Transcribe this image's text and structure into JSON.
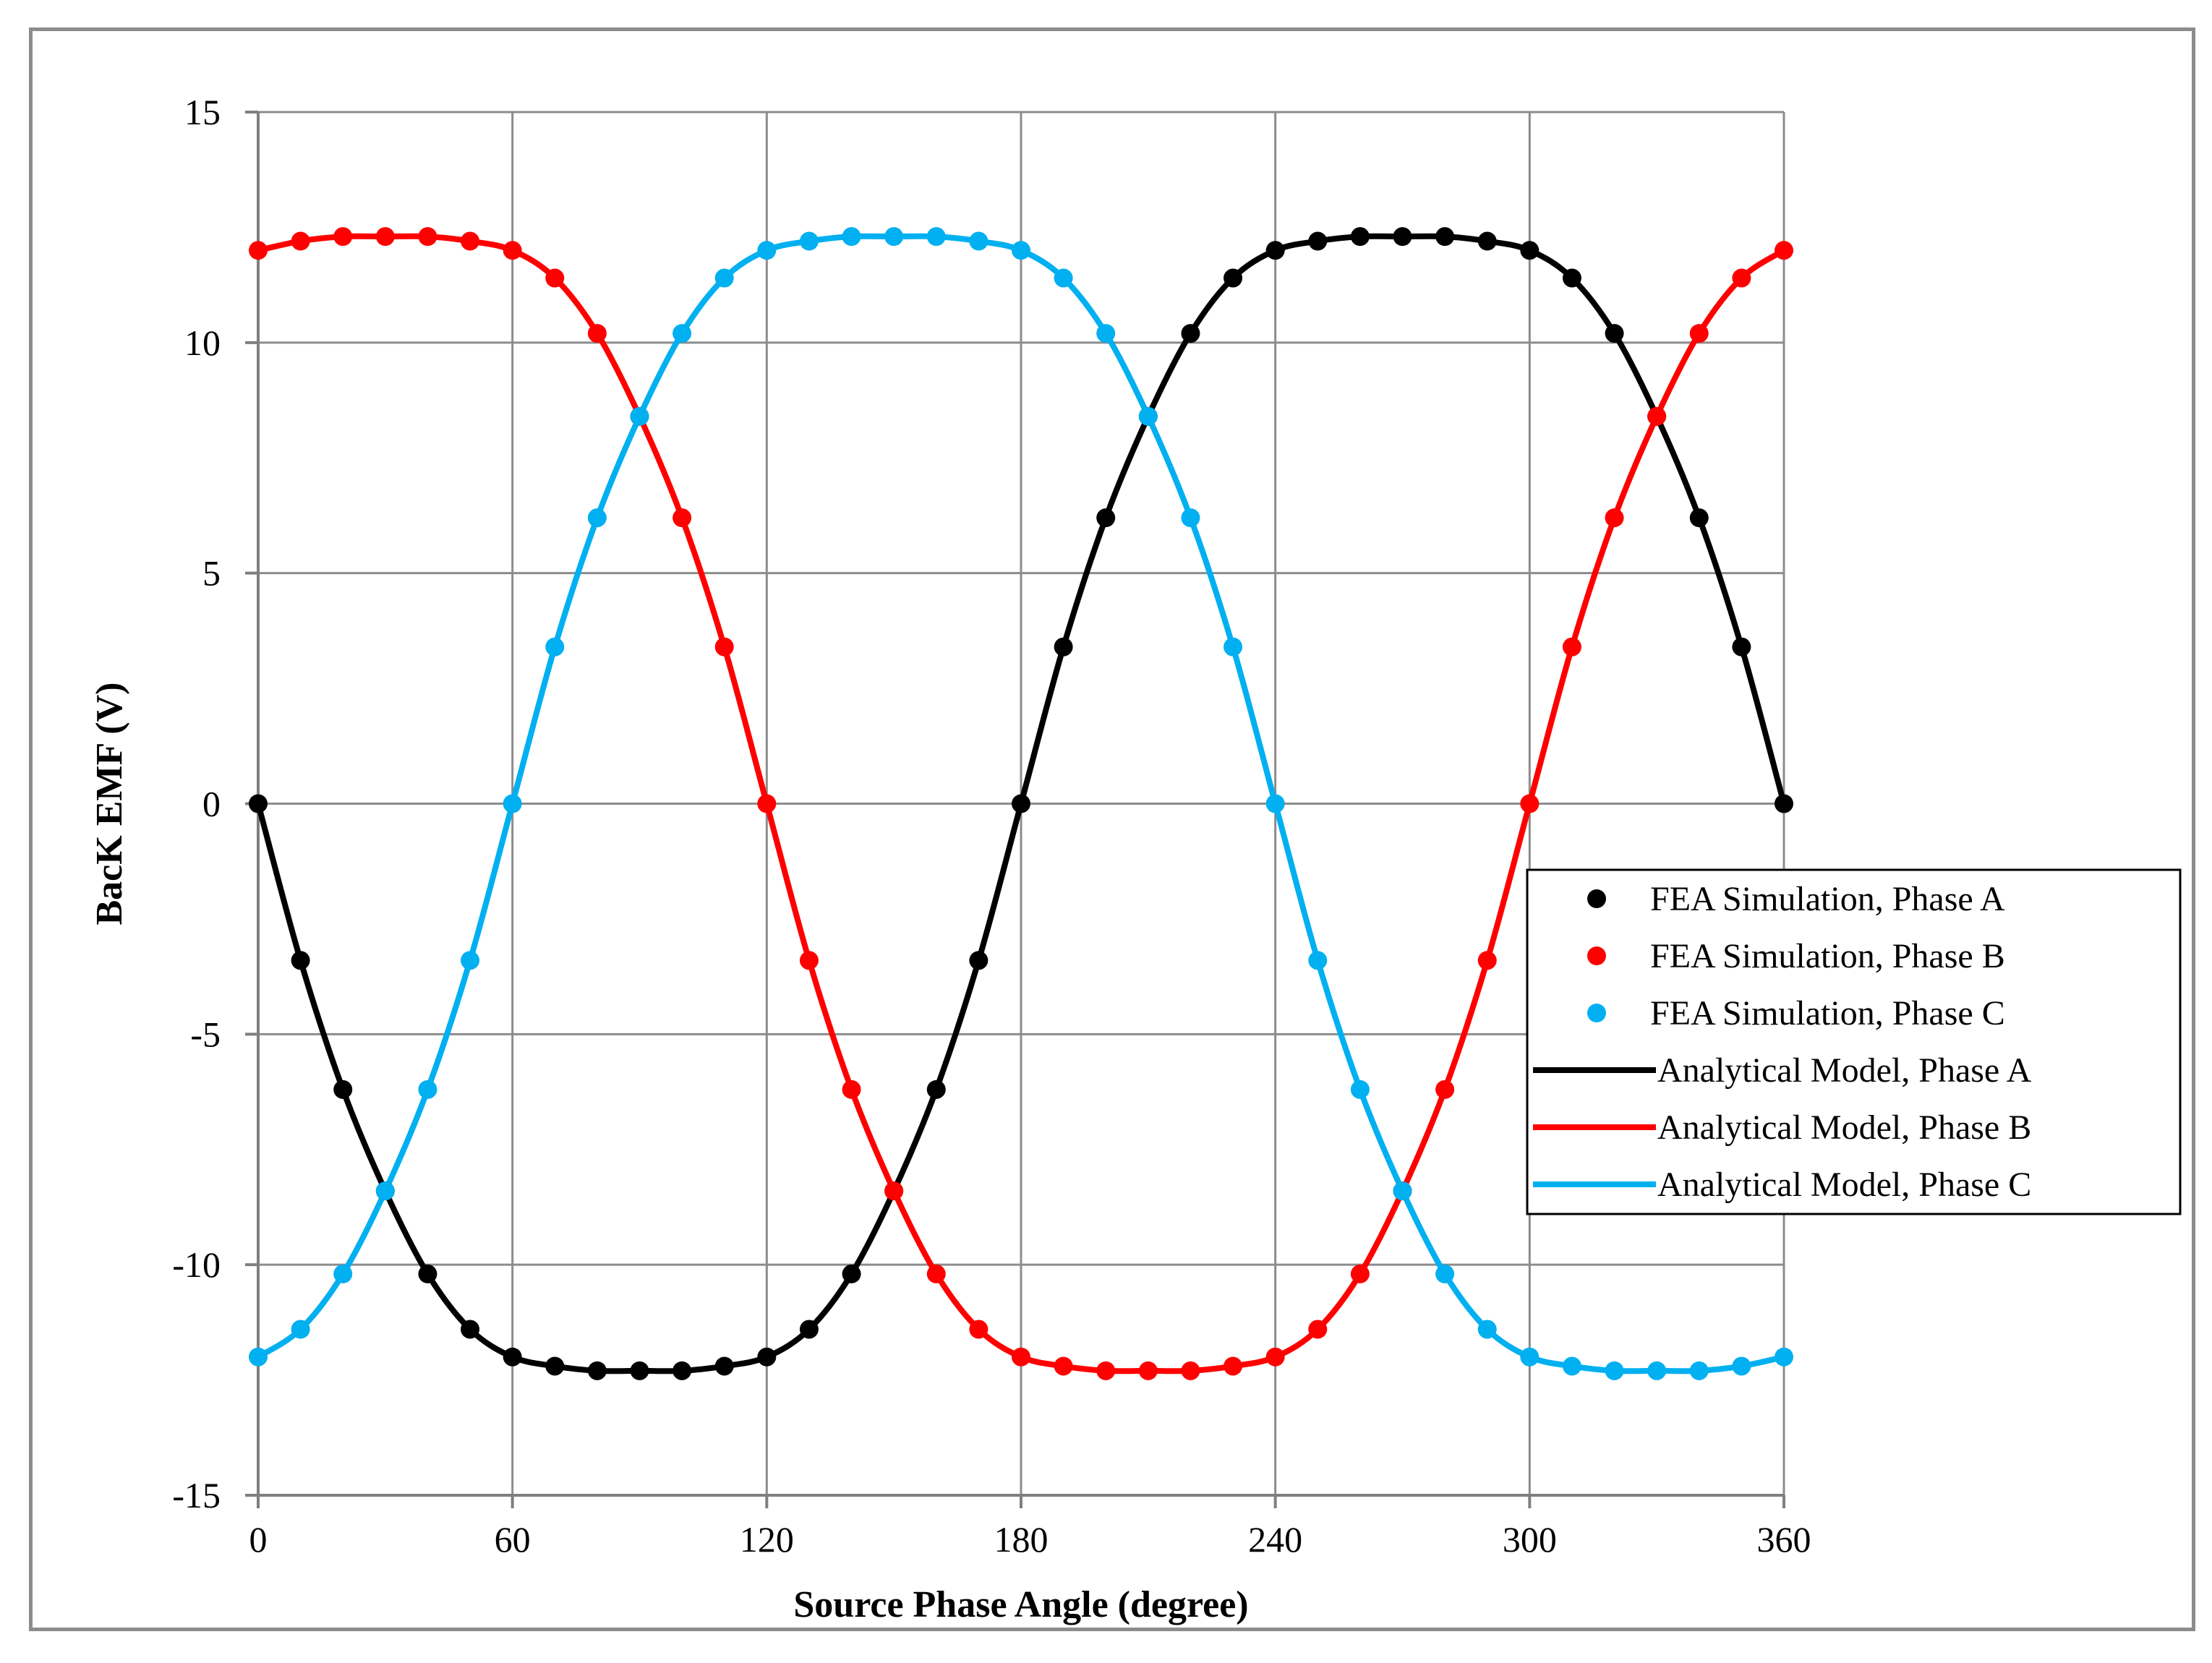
{
  "chart_data": {
    "type": "line",
    "title": "",
    "xlabel": "Source Phase Angle (degree)",
    "ylabel": "BacK EMF (V)",
    "xlim": [
      0,
      360
    ],
    "ylim": [
      -15,
      15
    ],
    "xticks": [
      0,
      60,
      120,
      180,
      240,
      300,
      360
    ],
    "yticks": [
      -15,
      -10,
      -5,
      0,
      5,
      10,
      15
    ],
    "x_tick_labels": [
      "0",
      "60",
      "120",
      "180",
      "240",
      "300",
      "360"
    ],
    "y_tick_labels": [
      "-15",
      "-10",
      "-5",
      "0",
      "5",
      "10",
      "15"
    ],
    "grid": true,
    "legend_position": "right",
    "x": [
      0,
      10,
      20,
      30,
      40,
      50,
      60,
      70,
      80,
      90,
      100,
      110,
      120,
      130,
      140,
      150,
      160,
      170,
      180,
      190,
      200,
      210,
      220,
      230,
      240,
      250,
      260,
      270,
      280,
      290,
      300,
      310,
      320,
      330,
      340,
      350,
      360
    ],
    "series": [
      {
        "name": "FEA Simulation, Phase A",
        "style": "markers",
        "color": "#000000",
        "values": [
          0,
          -3.4,
          -6.2,
          -8.4,
          -10.2,
          -11.4,
          -12.0,
          -12.2,
          -12.3,
          -12.3,
          -12.3,
          -12.2,
          -12.0,
          -11.4,
          -10.2,
          -8.4,
          -6.2,
          -3.4,
          0,
          3.4,
          6.2,
          8.4,
          10.2,
          11.4,
          12.0,
          12.2,
          12.3,
          12.3,
          12.3,
          12.2,
          12.0,
          11.4,
          10.2,
          8.4,
          6.2,
          3.4,
          0
        ]
      },
      {
        "name": "FEA Simulation, Phase B",
        "style": "markers",
        "color": "#ff0000",
        "values": [
          12.0,
          12.2,
          12.3,
          12.3,
          12.3,
          12.2,
          12.0,
          11.4,
          10.2,
          8.4,
          6.2,
          3.4,
          0,
          -3.4,
          -6.2,
          -8.4,
          -10.2,
          -11.4,
          -12.0,
          -12.2,
          -12.3,
          -12.3,
          -12.3,
          -12.2,
          -12.0,
          -11.4,
          -10.2,
          -8.4,
          -6.2,
          -3.4,
          0,
          3.4,
          6.2,
          8.4,
          10.2,
          11.4,
          12.0
        ]
      },
      {
        "name": "FEA Simulation, Phase C",
        "style": "markers",
        "color": "#00b0f0",
        "values": [
          -12.0,
          -11.4,
          -10.2,
          -8.4,
          -6.2,
          -3.4,
          0,
          3.4,
          6.2,
          8.4,
          10.2,
          11.4,
          12.0,
          12.2,
          12.3,
          12.3,
          12.3,
          12.2,
          12.0,
          11.4,
          10.2,
          8.4,
          6.2,
          3.4,
          0,
          -3.4,
          -6.2,
          -8.4,
          -10.2,
          -11.4,
          -12.0,
          -12.2,
          -12.3,
          -12.3,
          -12.3,
          -12.2,
          -12.0
        ]
      },
      {
        "name": "Analytical Model, Phase A",
        "style": "line",
        "color": "#000000",
        "values": [
          0,
          -3.4,
          -6.2,
          -8.4,
          -10.2,
          -11.4,
          -12.0,
          -12.2,
          -12.3,
          -12.3,
          -12.3,
          -12.2,
          -12.0,
          -11.4,
          -10.2,
          -8.4,
          -6.2,
          -3.4,
          0,
          3.4,
          6.2,
          8.4,
          10.2,
          11.4,
          12.0,
          12.2,
          12.3,
          12.3,
          12.3,
          12.2,
          12.0,
          11.4,
          10.2,
          8.4,
          6.2,
          3.4,
          0
        ]
      },
      {
        "name": "Analytical Model, Phase B",
        "style": "line",
        "color": "#ff0000",
        "values": [
          12.0,
          12.2,
          12.3,
          12.3,
          12.3,
          12.2,
          12.0,
          11.4,
          10.2,
          8.4,
          6.2,
          3.4,
          0,
          -3.4,
          -6.2,
          -8.4,
          -10.2,
          -11.4,
          -12.0,
          -12.2,
          -12.3,
          -12.3,
          -12.3,
          -12.2,
          -12.0,
          -11.4,
          -10.2,
          -8.4,
          -6.2,
          -3.4,
          0,
          3.4,
          6.2,
          8.4,
          10.2,
          11.4,
          12.0
        ]
      },
      {
        "name": "Analytical Model, Phase C",
        "style": "line",
        "color": "#00b0f0",
        "values": [
          -12.0,
          -11.4,
          -10.2,
          -8.4,
          -6.2,
          -3.4,
          0,
          3.4,
          6.2,
          8.4,
          10.2,
          11.4,
          12.0,
          12.2,
          12.3,
          12.3,
          12.3,
          12.2,
          12.0,
          11.4,
          10.2,
          8.4,
          6.2,
          3.4,
          0,
          -3.4,
          -6.2,
          -8.4,
          -10.2,
          -11.4,
          -12.0,
          -12.2,
          -12.3,
          -12.3,
          -12.3,
          -12.2,
          -12.0
        ]
      }
    ]
  }
}
